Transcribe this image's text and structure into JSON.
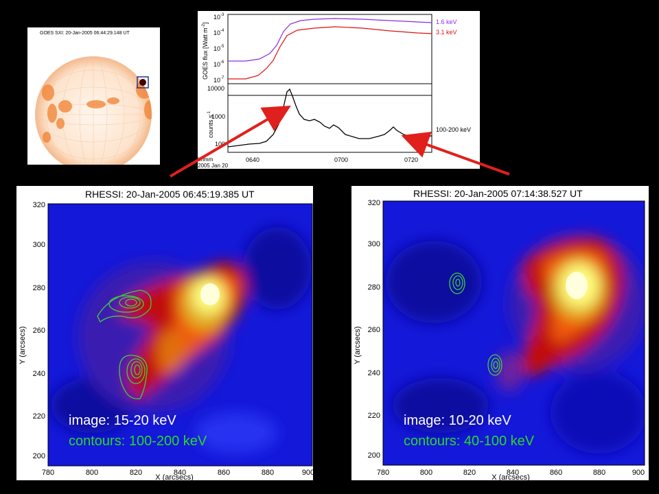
{
  "sxi": {
    "title": "GOES SXI:  20-Jan-2005 06:44:29.148 UT"
  },
  "lightcurve": {
    "goes_ylabel": "GOES flux [Watt m",
    "goes_ylabel_sup": "-2",
    "goes_ylabel_end": "]",
    "goes_ticks": [
      {
        "base": "10",
        "exp": "-3"
      },
      {
        "base": "10",
        "exp": "-4"
      },
      {
        "base": "10",
        "exp": "-5"
      },
      {
        "base": "10",
        "exp": "-6"
      },
      {
        "base": "10",
        "exp": "-7"
      }
    ],
    "goes_series": [
      {
        "name": "1.6 keV",
        "color": "#8b2be2"
      },
      {
        "name": "3.1 keV",
        "color": "#e01010"
      }
    ],
    "rhessi_ylabel": "counts s",
    "rhessi_ylabel_sup": "-1",
    "rhessi_ticks": [
      "10000",
      "1000",
      "100"
    ],
    "rhessi_series_label": "100-200 keV",
    "x_ticks": [
      "0640",
      "0700",
      "0720"
    ],
    "x_label_line1": "hhmm",
    "x_label_line2": "2005 Jan 20"
  },
  "left_image": {
    "title": "RHESSI:  20-Jan-2005 06:45:19.385 UT",
    "image_label": "image: 15-20 keV",
    "contour_label": "contours: 100-200 keV"
  },
  "right_image": {
    "title": "RHESSI:  20-Jan-2005 07:14:38.527 UT",
    "image_label": "image: 10-20 keV",
    "contour_label": "contours: 40-100 keV"
  },
  "axes": {
    "x_ticks": [
      "780",
      "800",
      "820",
      "840",
      "860",
      "880",
      "900"
    ],
    "y_ticks": [
      "320",
      "300",
      "280",
      "260",
      "240",
      "220",
      "200"
    ],
    "xlabel": "X (arcsecs)",
    "ylabel": "Y (arcsecs)"
  },
  "colors": {
    "contour": "#3ecf3e",
    "label_white": "#ffffff",
    "label_green": "#2bd82b",
    "arrow": "#e0201c"
  }
}
